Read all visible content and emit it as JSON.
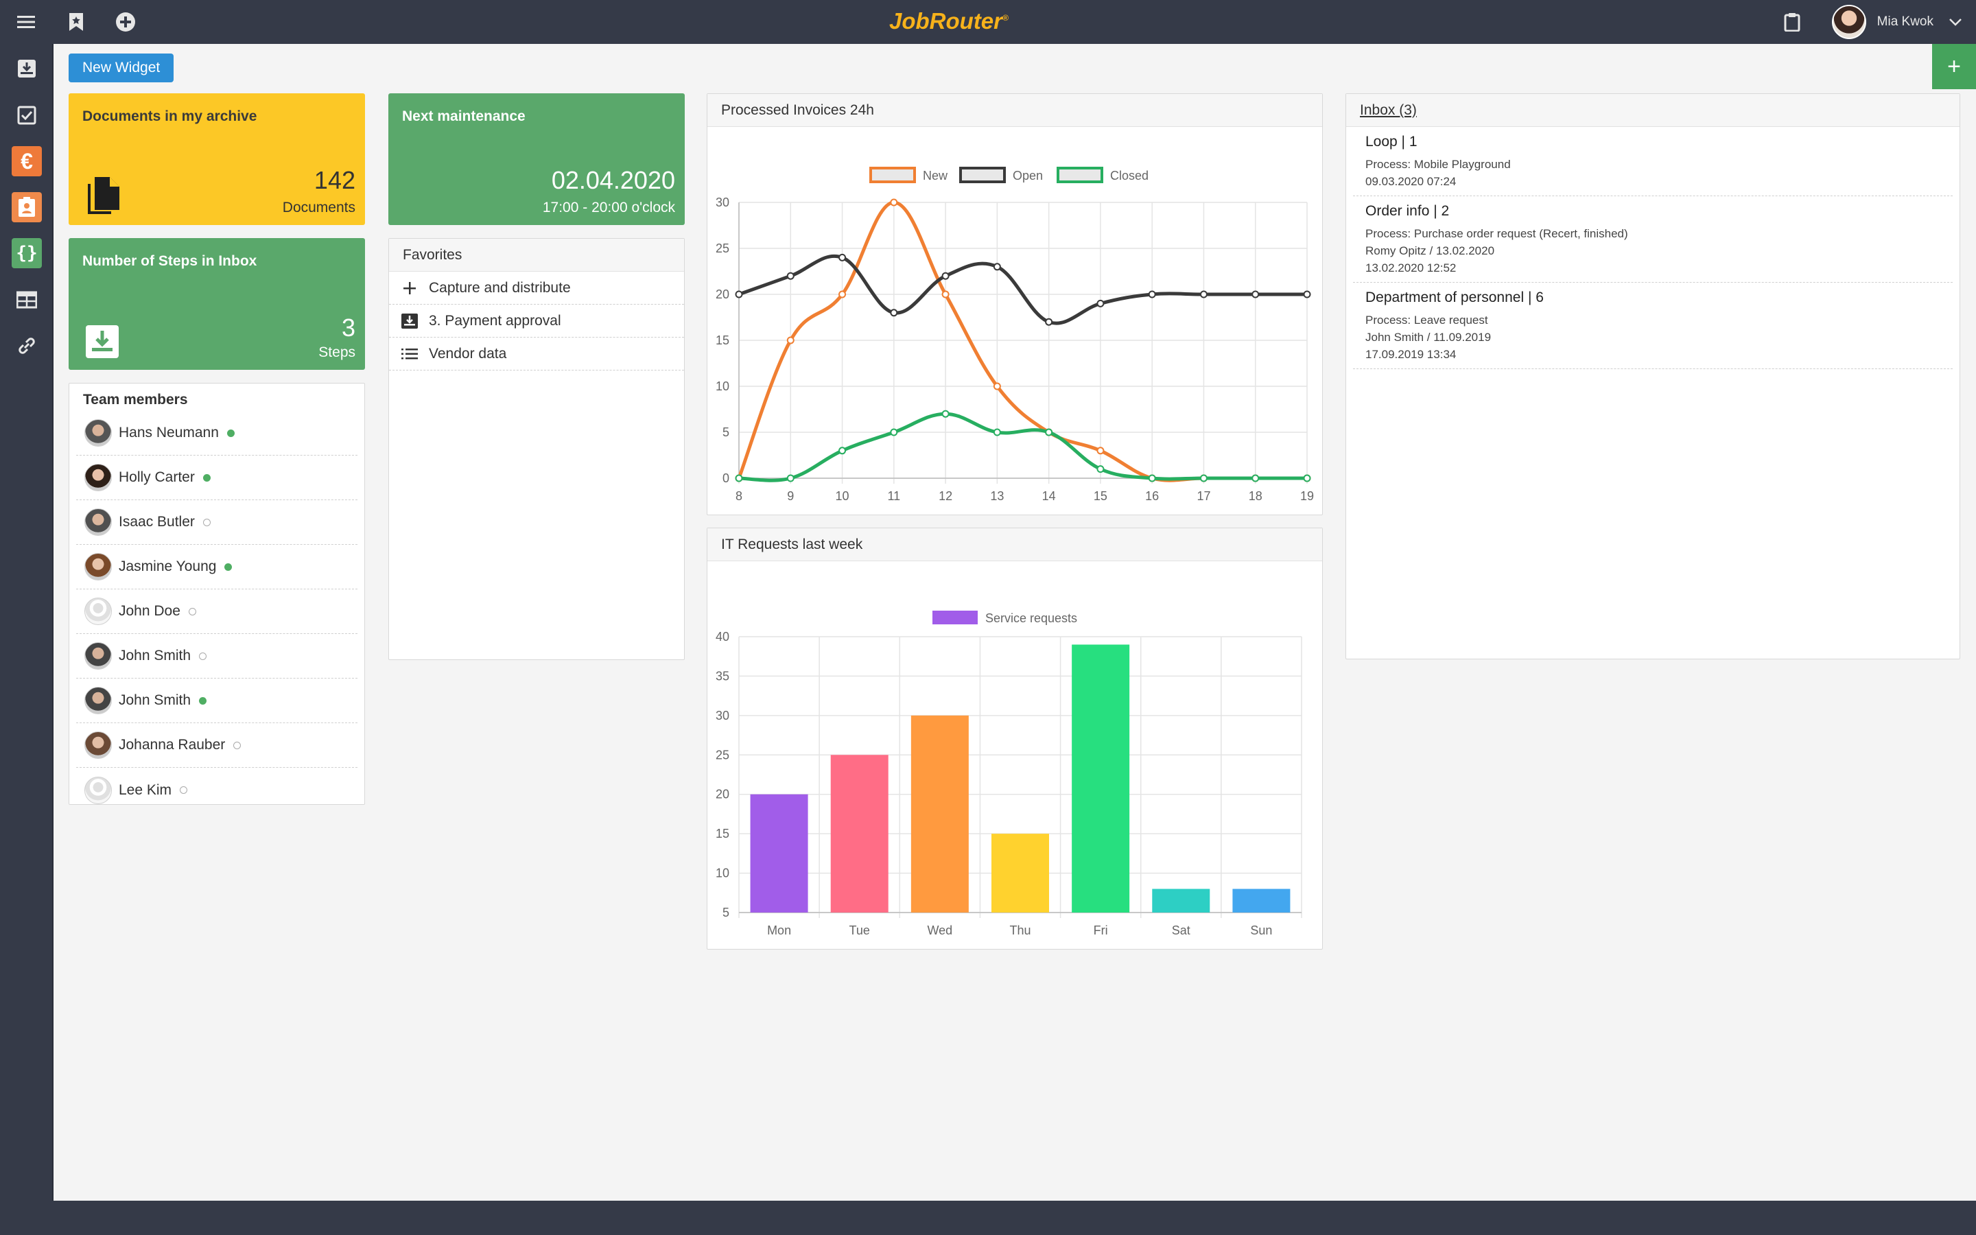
{
  "app": {
    "logo_text": "JobRouter",
    "logo_mark": "®",
    "brand_color": "#f7b21b"
  },
  "topbar": {
    "icons": [
      "menu-icon",
      "bookmark-star-icon",
      "plus-circle-icon"
    ],
    "clipboard_icon": "clipboard-icon",
    "user_name": "Mia Kwok",
    "user_menu_icon": "chevron-down-icon"
  },
  "sidebar": {
    "items": [
      {
        "name": "inbox-download-icon"
      },
      {
        "name": "checkbox-icon"
      },
      {
        "name": "euro-icon",
        "label": "€",
        "color": "#ee7a3a"
      },
      {
        "name": "contact-card-icon",
        "color": "#f08a4b"
      },
      {
        "name": "braces-icon",
        "label": "{}",
        "color": "#5aa86b"
      },
      {
        "name": "table-icon"
      },
      {
        "name": "link-icon"
      }
    ]
  },
  "toolbar": {
    "new_widget_label": "New Widget",
    "add_label": "+"
  },
  "widgets": {
    "archive": {
      "title": "Documents in my archive",
      "count": "142",
      "unit": "Documents",
      "color": "#fcc826"
    },
    "maintenance": {
      "title": "Next maintenance",
      "date": "02.04.2020",
      "time": "17:00 - 20:00 o'clock",
      "color": "#5aa86b"
    },
    "steps": {
      "title": "Number of Steps in Inbox",
      "count": "3",
      "unit": "Steps",
      "color": "#5aa86b"
    },
    "team": {
      "title": "Team members",
      "members": [
        {
          "name": "Hans Neumann",
          "online": true
        },
        {
          "name": "Holly Carter",
          "online": true
        },
        {
          "name": "Isaac Butler",
          "online": false
        },
        {
          "name": "Jasmine Young",
          "online": true
        },
        {
          "name": "John Doe",
          "online": false
        },
        {
          "name": "John Smith",
          "online": false
        },
        {
          "name": "John Smith",
          "online": true
        },
        {
          "name": "Johanna Rauber",
          "online": false
        },
        {
          "name": "Lee Kim",
          "online": false
        }
      ]
    },
    "favorites": {
      "title": "Favorites",
      "items": [
        {
          "label": "Capture and distribute",
          "icon": "plus-icon"
        },
        {
          "label": "3. Payment approval",
          "icon": "inbox-icon"
        },
        {
          "label": "Vendor data",
          "icon": "list-icon"
        }
      ]
    },
    "invoices": {
      "title": "Processed Invoices 24h"
    },
    "it_requests": {
      "title": "IT Requests last week"
    },
    "inbox": {
      "title": "Inbox (3)",
      "items": [
        {
          "title": "Loop | 1",
          "lines": [
            "Process: Mobile Playground",
            "09.03.2020 07:24"
          ]
        },
        {
          "title": "Order info | 2",
          "lines": [
            "Process: Purchase order request (Recert, finished)",
            "Romy Opitz / 13.02.2020",
            "13.02.2020 12:52"
          ]
        },
        {
          "title": "Department of personnel | 6",
          "lines": [
            "Process: Leave request",
            "John Smith / 11.09.2019",
            "17.09.2019 13:34"
          ]
        }
      ]
    }
  },
  "chart_data": [
    {
      "type": "line",
      "title": "Processed Invoices 24h",
      "x": [
        8,
        9,
        10,
        11,
        12,
        13,
        14,
        15,
        16,
        17,
        18,
        19
      ],
      "ylim": [
        0,
        30
      ],
      "yticks": [
        0,
        5,
        10,
        15,
        20,
        25,
        30
      ],
      "legend": "top",
      "grid": true,
      "series": [
        {
          "name": "New",
          "color": "#f07f32",
          "values": [
            0,
            15,
            20,
            30,
            20,
            10,
            5,
            3,
            0,
            0,
            0,
            0
          ]
        },
        {
          "name": "Open",
          "color": "#3a3a3a",
          "values": [
            20,
            22,
            24,
            18,
            22,
            23,
            17,
            19,
            20,
            20,
            20,
            20
          ]
        },
        {
          "name": "Closed",
          "color": "#27ae60",
          "values": [
            0,
            0,
            3,
            5,
            7,
            5,
            5,
            1,
            0,
            0,
            0,
            0
          ]
        }
      ]
    },
    {
      "type": "bar",
      "title": "IT Requests last week",
      "categories": [
        "Mon",
        "Tue",
        "Wed",
        "Thu",
        "Fri",
        "Sat",
        "Sun"
      ],
      "ylim": [
        5,
        40
      ],
      "yticks": [
        5,
        10,
        15,
        20,
        25,
        30,
        35,
        40
      ],
      "legend": "top",
      "grid": true,
      "series": [
        {
          "name": "Service requests",
          "color": "#a15de9",
          "values": [
            20,
            25,
            30,
            15,
            39,
            8,
            8
          ]
        }
      ],
      "bar_colors": [
        "#a15de9",
        "#ff6d86",
        "#ff9a3f",
        "#ffd22e",
        "#27df7f",
        "#2dcfc4",
        "#43a7ef"
      ]
    }
  ]
}
